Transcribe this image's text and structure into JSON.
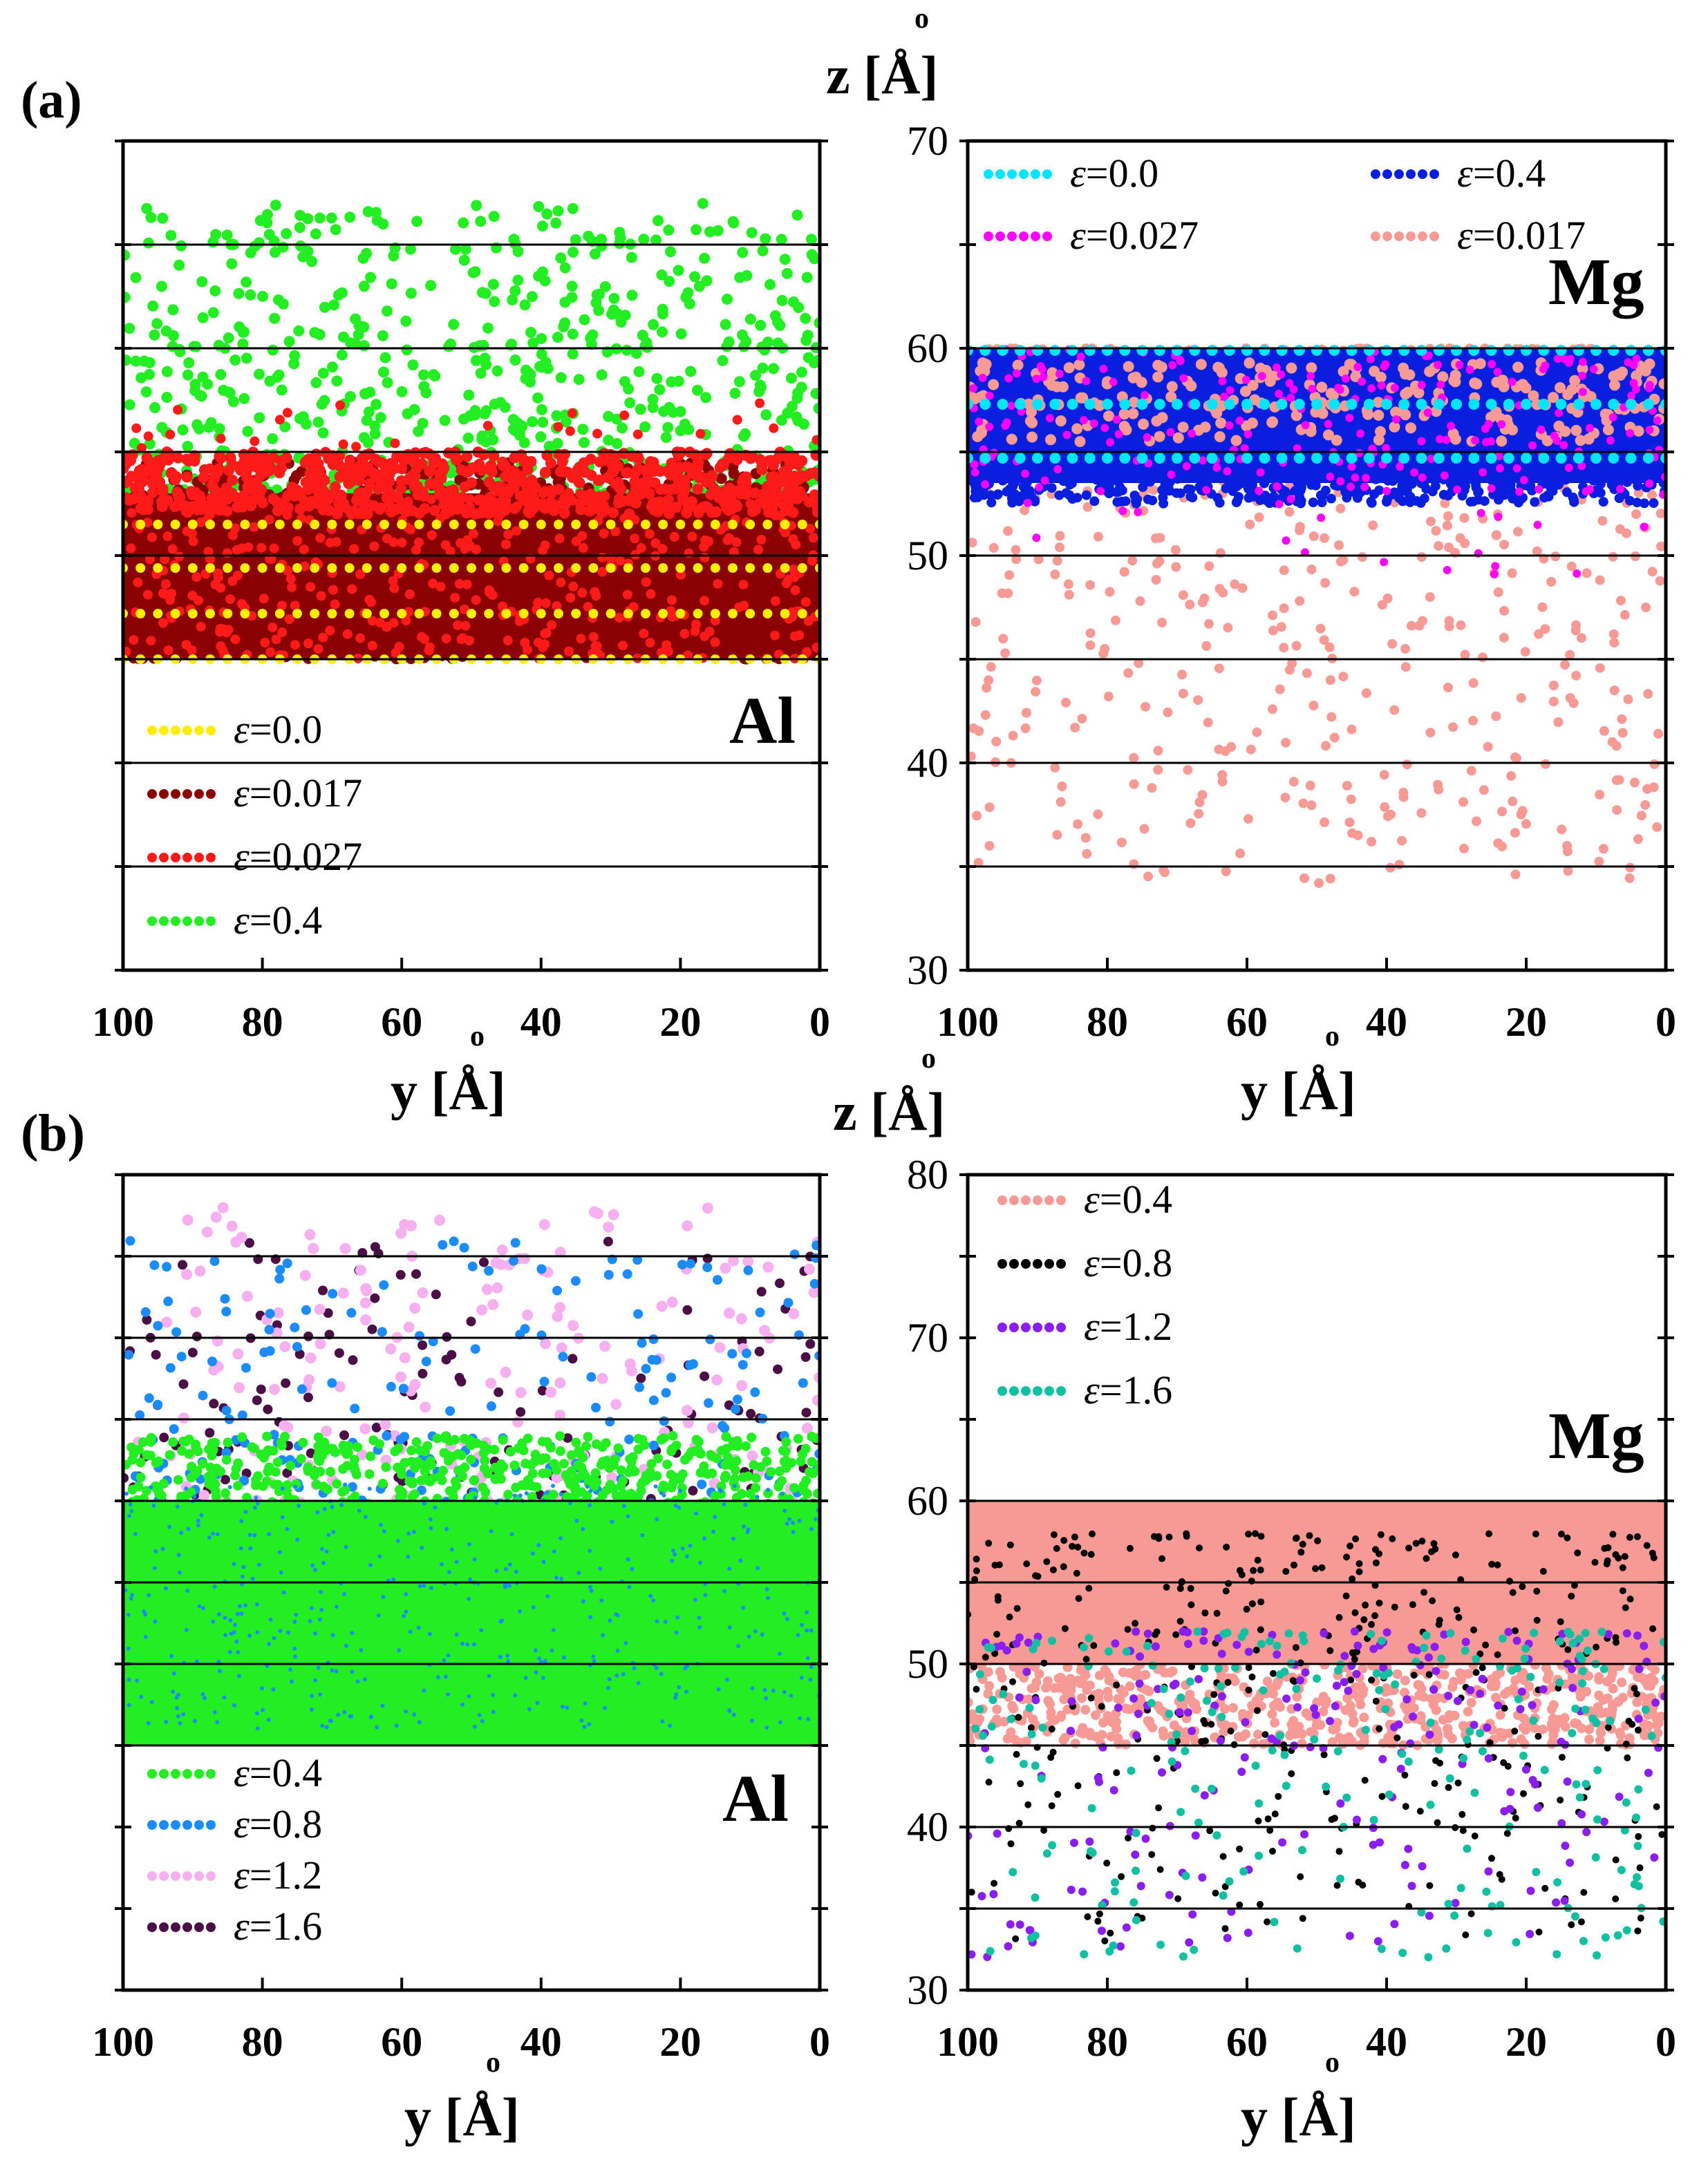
{
  "figure": {
    "label_a": "(a)",
    "label_b": "(b)",
    "z_axis_label": "z [Å]",
    "y_axis_label": "y [Å]",
    "angstrom_ring": "o"
  },
  "chart_data": [
    {
      "id": "a-al",
      "type": "scatter",
      "material": "Al",
      "xlabel": "y [Å]",
      "xlim": [
        100,
        0
      ],
      "xticks": [
        "100",
        "80",
        "60",
        "40",
        "20",
        "0"
      ],
      "ylim": [
        30,
        70
      ],
      "gridlines_z": [
        35,
        40,
        45,
        50,
        55,
        60,
        65
      ],
      "legend_position": "bottom-left",
      "series": [
        {
          "name": "ε=0.0",
          "eps": "0.0",
          "color": "#ffee00",
          "z_min": 45,
          "z_max": 51.5,
          "layers": [
            45,
            47.2,
            49.4,
            51.5
          ]
        },
        {
          "name": "ε=0.017",
          "eps": "0.017",
          "color": "#8b0000",
          "z_min": 45,
          "z_max": 54.5
        },
        {
          "name": "ε=0.027",
          "eps": "0.027",
          "color": "#ff1a1a",
          "z_min": 45,
          "z_max": 57.5
        },
        {
          "name": "ε=0.4",
          "eps": "0.4",
          "color": "#22ee22",
          "z_min": 53,
          "z_max": 67
        }
      ]
    },
    {
      "id": "a-mg",
      "type": "scatter",
      "material": "Mg",
      "xlabel": "y [Å]",
      "ylabel": "z [Å]",
      "xlim": [
        100,
        0
      ],
      "xticks": [
        "100",
        "80",
        "60",
        "40",
        "20",
        "0"
      ],
      "ylim": [
        30,
        70
      ],
      "yticks": [
        "30",
        "40",
        "50",
        "60",
        "70"
      ],
      "gridlines_z": [
        35,
        40,
        45,
        50,
        55,
        60
      ],
      "legend_position": "top",
      "series": [
        {
          "name": "ε=0.0",
          "eps": "0.0",
          "color": "#00e5ff",
          "layers": [
            54.7,
            57.3,
            59.9
          ]
        },
        {
          "name": "ε=0.4",
          "eps": "0.4",
          "color": "#0a1ee0",
          "z_min": 53,
          "z_max": 60
        },
        {
          "name": "ε=0.027",
          "eps": "0.027",
          "color": "#ff00ff",
          "z_min": 49,
          "z_max": 60
        },
        {
          "name": "ε=0.017",
          "eps": "0.017",
          "color": "#f79a95",
          "z_min": 34,
          "z_max": 60
        }
      ]
    },
    {
      "id": "b-al",
      "type": "scatter",
      "material": "Al",
      "xlabel": "y [Å]",
      "xlim": [
        100,
        0
      ],
      "xticks": [
        "100",
        "80",
        "60",
        "40",
        "20",
        "0"
      ],
      "ylim": [
        30,
        80
      ],
      "gridlines_z": [
        45,
        50,
        55,
        60,
        65,
        70,
        75
      ],
      "legend_position": "bottom-left",
      "series": [
        {
          "name": "ε=0.4",
          "eps": "0.4",
          "color": "#22ee22",
          "z_min": 45,
          "z_max": 64
        },
        {
          "name": "ε=0.8",
          "eps": "0.8",
          "color": "#1a8cff",
          "z_min": 45,
          "z_max": 76
        },
        {
          "name": "ε=1.2",
          "eps": "1.2",
          "color": "#f7b0ef",
          "z_min": 45,
          "z_max": 78
        },
        {
          "name": "ε=1.6",
          "eps": "1.6",
          "color": "#4a0f45",
          "z_min": 57,
          "z_max": 76
        }
      ]
    },
    {
      "id": "b-mg",
      "type": "scatter",
      "material": "Mg",
      "xlabel": "y [Å]",
      "ylabel": "z [Å]",
      "xlim": [
        100,
        0
      ],
      "xticks": [
        "100",
        "80",
        "60",
        "40",
        "20",
        "0"
      ],
      "ylim": [
        30,
        80
      ],
      "yticks": [
        "30",
        "40",
        "50",
        "60",
        "70",
        "80"
      ],
      "gridlines_z": [
        35,
        40,
        45,
        50,
        55,
        60
      ],
      "legend_position": "top-left",
      "series": [
        {
          "name": "ε=0.4",
          "eps": "0.4",
          "color": "#f79a95",
          "z_min": 45,
          "z_max": 60
        },
        {
          "name": "ε=0.8",
          "eps": "0.8",
          "color": "#000000",
          "z_min": 33,
          "z_max": 58
        },
        {
          "name": "ε=1.2",
          "eps": "1.2",
          "color": "#8a1ef0",
          "z_min": 32,
          "z_max": 52
        },
        {
          "name": "ε=1.6",
          "eps": "1.6",
          "color": "#10c0a0",
          "z_min": 32,
          "z_max": 52
        }
      ]
    }
  ]
}
